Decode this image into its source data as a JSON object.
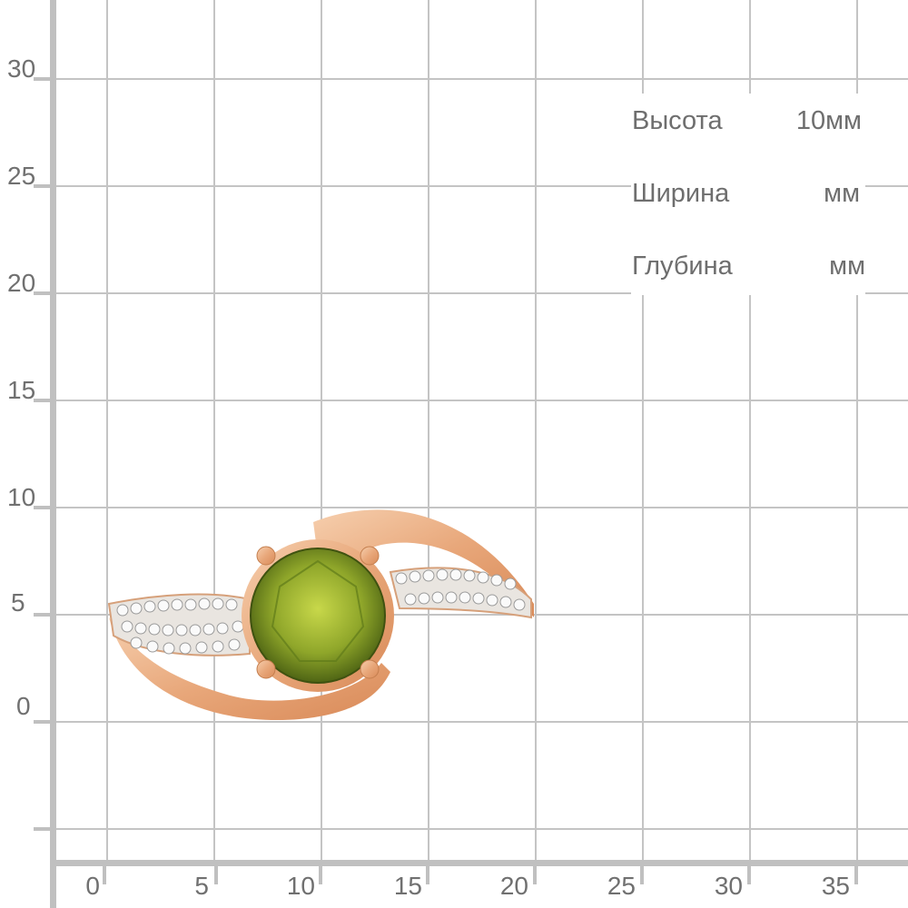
{
  "y_axis": {
    "ticks": [
      "30",
      "25",
      "20",
      "15",
      "10",
      "5",
      "0"
    ]
  },
  "x_axis": {
    "ticks": [
      "0",
      "5",
      "10",
      "15",
      "20",
      "25",
      "30",
      "35"
    ]
  },
  "dimensions": [
    {
      "label": "Высота",
      "value": "10мм"
    },
    {
      "label": "Ширина",
      "value": "мм"
    },
    {
      "label": "Глубина",
      "value": "мм"
    }
  ],
  "product": {
    "image": "gold-ring-with-green-peridot-and-diamonds",
    "metal_color": "#e8a77a",
    "stone_color": "#8fa62a"
  },
  "grid_color": "#c4c4c4",
  "text_color": "#707070"
}
